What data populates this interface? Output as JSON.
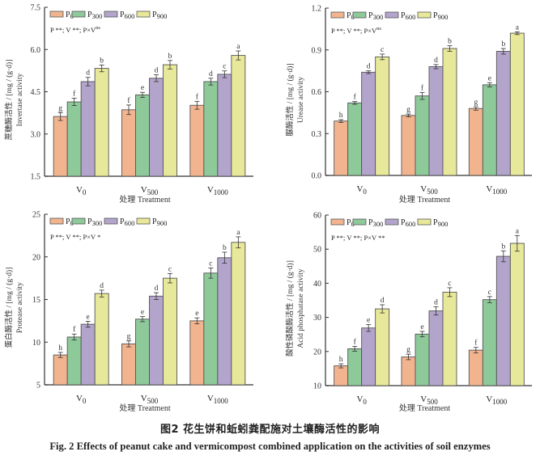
{
  "figure": {
    "caption_cn": "图2   花生饼和蚯蚓粪配施对土壤酶活性的影响",
    "caption_en": "Fig. 2    Effects of peanut cake and vermicompost combined application on the activities of soil enzymes"
  },
  "legend": {
    "entries": [
      {
        "main": "P",
        "sub": "0",
        "color": "#f2b48e"
      },
      {
        "main": "P",
        "sub": "300",
        "color": "#8ec99a"
      },
      {
        "main": "P",
        "sub": "600",
        "color": "#b3a4cc"
      },
      {
        "main": "P",
        "sub": "900",
        "color": "#e8e89a"
      }
    ]
  },
  "chart_data": [
    {
      "type": "bar",
      "panel": "top-left",
      "title": "",
      "ylabel_cn": "蔗糖酶活性 / [mg / (g·d)]",
      "ylabel_en": "Invertase activity",
      "xlabel": "处理  Treatment",
      "stats_text": "P **;  V **;  P×V",
      "stats_sup": "ns",
      "categories": [
        {
          "main": "V",
          "sub": "0"
        },
        {
          "main": "V",
          "sub": "500"
        },
        {
          "main": "V",
          "sub": "1000"
        }
      ],
      "ylim": [
        1.5,
        7.5
      ],
      "yticks": [
        "1.5",
        "3.0",
        "4.5",
        "6.0",
        "7.5"
      ],
      "legend_position": "top-left",
      "series": [
        {
          "name": "P0",
          "values": [
            3.62,
            3.86,
            4.02
          ],
          "errors": [
            0.14,
            0.17,
            0.14
          ],
          "letters": [
            "g",
            "f",
            "f"
          ]
        },
        {
          "name": "P300",
          "values": [
            4.14,
            4.39,
            4.86
          ],
          "errors": [
            0.13,
            0.09,
            0.12
          ],
          "letters": [
            "f",
            "e",
            "d"
          ]
        },
        {
          "name": "P600",
          "values": [
            4.86,
            4.98,
            5.12
          ],
          "errors": [
            0.15,
            0.12,
            0.12
          ],
          "letters": [
            "d",
            "d",
            "c"
          ]
        },
        {
          "name": "P900",
          "values": [
            5.33,
            5.46,
            5.79
          ],
          "errors": [
            0.12,
            0.15,
            0.16
          ],
          "letters": [
            "b",
            "b",
            "a"
          ]
        }
      ]
    },
    {
      "type": "bar",
      "panel": "top-right",
      "title": "",
      "ylabel_cn": "脲酶活性 / [mg / (g·d)]",
      "ylabel_en": "Urease activity",
      "xlabel": "处理  Treatment",
      "stats_text": "P **;  V **;  P×V",
      "stats_sup": "ns",
      "categories": [
        {
          "main": "V",
          "sub": "0"
        },
        {
          "main": "V",
          "sub": "500"
        },
        {
          "main": "V",
          "sub": "1000"
        }
      ],
      "ylim": [
        0.0,
        1.2
      ],
      "yticks": [
        "0.0",
        "0.3",
        "0.6",
        "0.9",
        "1.2"
      ],
      "legend_position": "top-left",
      "series": [
        {
          "name": "P0",
          "values": [
            0.39,
            0.43,
            0.48
          ],
          "errors": [
            0.01,
            0.01,
            0.012
          ],
          "letters": [
            "h",
            "g",
            "g"
          ]
        },
        {
          "name": "P300",
          "values": [
            0.52,
            0.57,
            0.65
          ],
          "errors": [
            0.01,
            0.025,
            0.015
          ],
          "letters": [
            "f",
            "f",
            "e"
          ]
        },
        {
          "name": "P600",
          "values": [
            0.74,
            0.78,
            0.89
          ],
          "errors": [
            0.01,
            0.015,
            0.02
          ],
          "letters": [
            "d",
            "d",
            "b"
          ]
        },
        {
          "name": "P900",
          "values": [
            0.85,
            0.91,
            1.02
          ],
          "errors": [
            0.02,
            0.02,
            0.01
          ],
          "letters": [
            "c",
            "b",
            "a"
          ]
        }
      ]
    },
    {
      "type": "bar",
      "panel": "bottom-left",
      "title": "",
      "ylabel_cn": "蛋白酶活性 / [mg / (g·d)]",
      "ylabel_en": "Protease activity",
      "xlabel": "处理  Treatment",
      "stats_text": "P **;  V **;  P×V *",
      "stats_sup": "",
      "categories": [
        {
          "main": "V",
          "sub": "0"
        },
        {
          "main": "V",
          "sub": "500"
        },
        {
          "main": "V",
          "sub": "1000"
        }
      ],
      "ylim": [
        5,
        25
      ],
      "yticks": [
        "5",
        "10",
        "15",
        "20",
        "25"
      ],
      "legend_position": "top-left",
      "series": [
        {
          "name": "P0",
          "values": [
            8.5,
            9.8,
            12.5
          ],
          "errors": [
            0.3,
            0.35,
            0.35
          ],
          "letters": [
            "h",
            "g",
            "e"
          ]
        },
        {
          "name": "P300",
          "values": [
            10.6,
            12.7,
            18.1
          ],
          "errors": [
            0.35,
            0.3,
            0.6
          ],
          "letters": [
            "f",
            "e",
            "c"
          ]
        },
        {
          "name": "P600",
          "values": [
            12.1,
            15.4,
            19.9
          ],
          "errors": [
            0.35,
            0.4,
            0.65
          ],
          "letters": [
            "e",
            "d",
            "b"
          ]
        },
        {
          "name": "P900",
          "values": [
            15.7,
            17.5,
            21.7
          ],
          "errors": [
            0.4,
            0.55,
            0.65
          ],
          "letters": [
            "d",
            "c",
            "a"
          ]
        }
      ]
    },
    {
      "type": "bar",
      "panel": "bottom-right",
      "title": "",
      "ylabel_cn": "酸性磷酸酶活性 / [mg / (g·d)]",
      "ylabel_en": "Acid phosphatase activity",
      "xlabel": "处理  Treatment",
      "stats_text": "P **;  V **;  P×V **",
      "stats_sup": "",
      "categories": [
        {
          "main": "V",
          "sub": "0"
        },
        {
          "main": "V",
          "sub": "500"
        },
        {
          "main": "V",
          "sub": "1000"
        }
      ],
      "ylim": [
        10,
        60
      ],
      "yticks": [
        "10",
        "20",
        "30",
        "40",
        "50",
        "60"
      ],
      "legend_position": "top-left",
      "series": [
        {
          "name": "P0",
          "values": [
            15.8,
            18.4,
            20.4
          ],
          "errors": [
            0.6,
            0.8,
            0.8
          ],
          "letters": [
            "h",
            "g",
            "f"
          ]
        },
        {
          "name": "P300",
          "values": [
            20.8,
            25.1,
            35.2
          ],
          "errors": [
            0.7,
            0.8,
            0.9
          ],
          "letters": [
            "f",
            "e",
            "c"
          ]
        },
        {
          "name": "P600",
          "values": [
            26.9,
            31.9,
            47.9
          ],
          "errors": [
            1.0,
            1.2,
            1.6
          ],
          "letters": [
            "e",
            "d",
            "b"
          ]
        },
        {
          "name": "P900",
          "values": [
            32.5,
            37.4,
            51.7
          ],
          "errors": [
            1.2,
            1.3,
            2.3
          ],
          "letters": [
            "d",
            "c",
            "a"
          ]
        }
      ]
    }
  ]
}
